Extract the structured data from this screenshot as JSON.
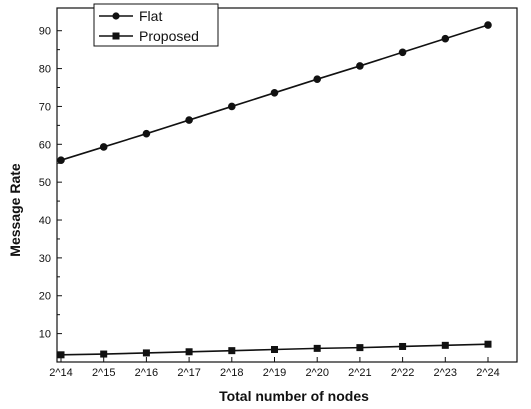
{
  "chart_data": {
    "type": "line",
    "x": [
      "2^14",
      "2^15",
      "2^16",
      "2^17",
      "2^18",
      "2^19",
      "2^20",
      "2^21",
      "2^22",
      "2^23",
      "2^24"
    ],
    "series": [
      {
        "name": "Flat",
        "marker": "circle",
        "values": [
          55.8,
          59.3,
          62.8,
          66.4,
          70.0,
          73.6,
          77.2,
          80.7,
          84.3,
          87.9,
          91.5
        ]
      },
      {
        "name": "Proposed",
        "marker": "square",
        "values": [
          4.4,
          4.6,
          4.9,
          5.2,
          5.5,
          5.8,
          6.1,
          6.3,
          6.6,
          6.9,
          7.2
        ]
      }
    ],
    "xlabel": "Total number of nodes",
    "ylabel": "Message Rate",
    "ylim": [
      2.5,
      96
    ],
    "yticks": [
      10,
      20,
      30,
      40,
      50,
      60,
      70,
      80,
      90
    ],
    "grid": false,
    "legend_position": "top-left",
    "colors": {
      "line": "#111111",
      "axis": "#111111",
      "background": "#ffffff"
    }
  }
}
